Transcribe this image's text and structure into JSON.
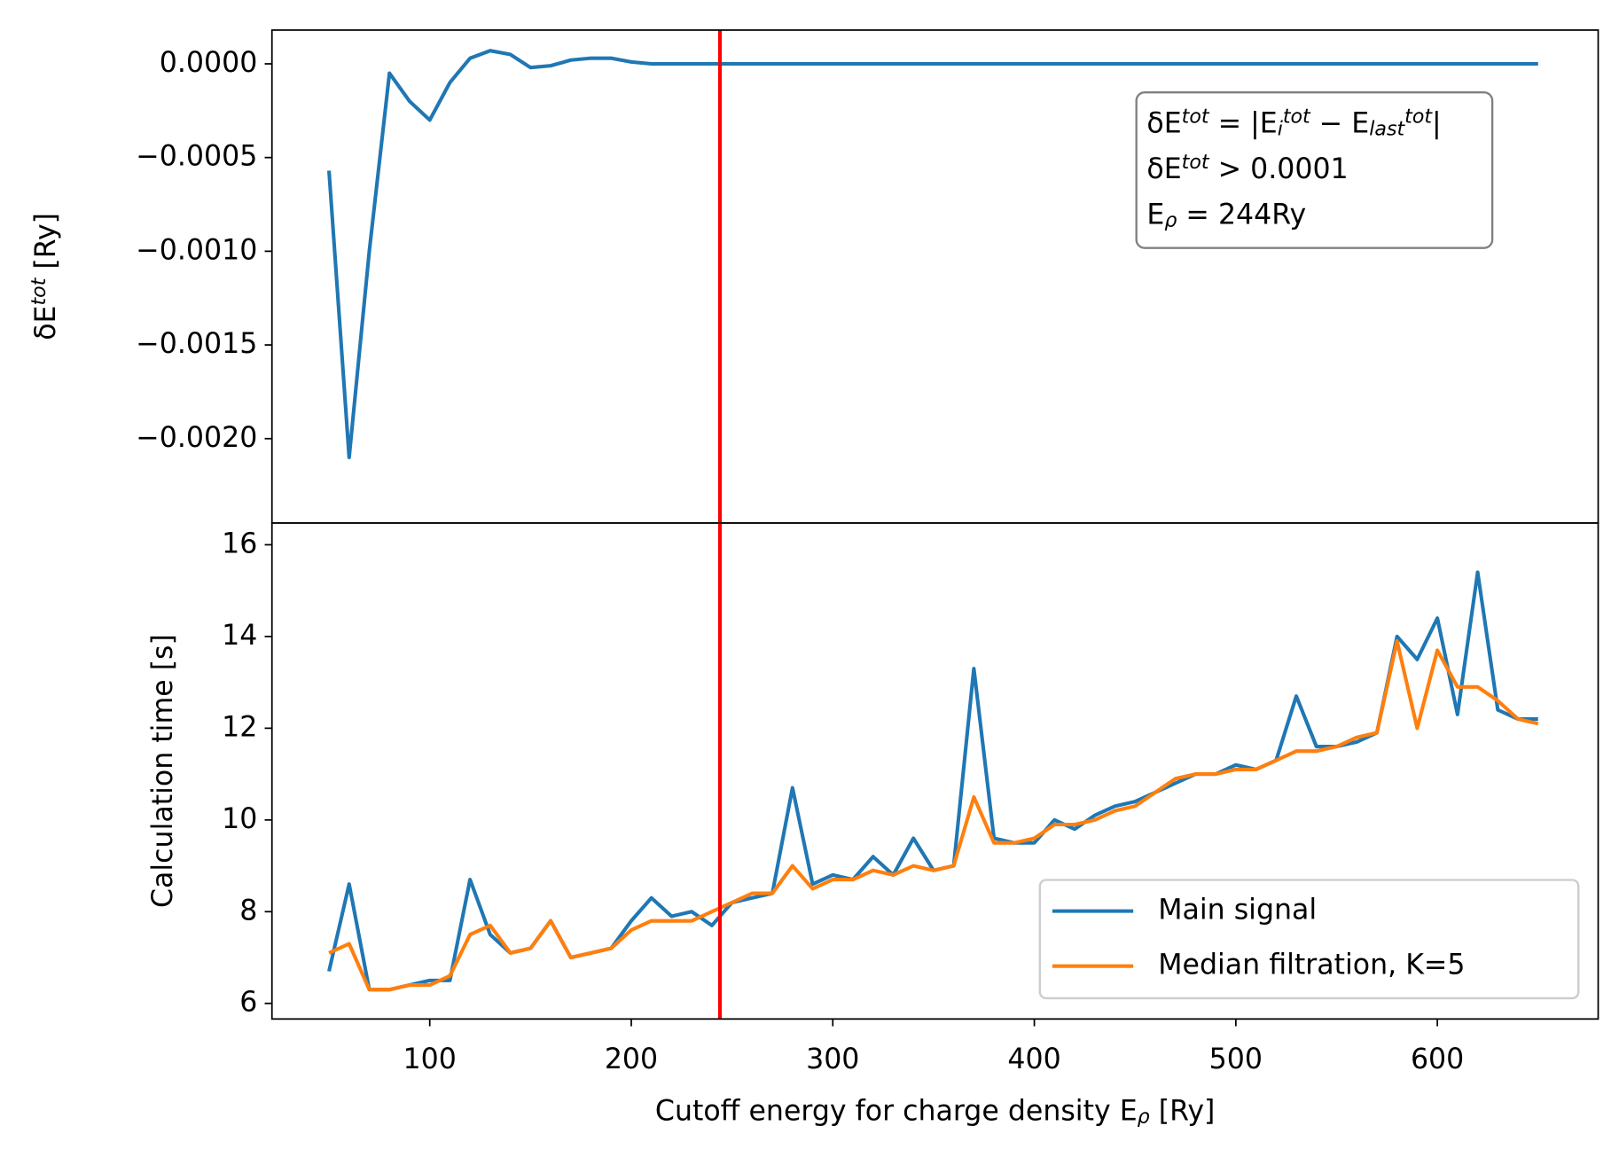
{
  "chart_data": [
    {
      "type": "line",
      "y_label": "δE^{tot} [Ry]",
      "x": [
        50,
        60,
        70,
        80,
        90,
        100,
        110,
        120,
        130,
        140,
        150,
        160,
        170,
        180,
        190,
        200,
        210,
        220,
        230,
        240,
        250,
        260,
        270,
        280,
        290,
        300,
        310,
        320,
        330,
        340,
        350,
        360,
        370,
        380,
        390,
        400,
        410,
        420,
        430,
        440,
        450,
        460,
        470,
        480,
        490,
        500,
        510,
        520,
        530,
        540,
        550,
        560,
        570,
        580,
        590,
        600,
        610,
        620,
        630,
        640,
        650
      ],
      "series": [
        {
          "name": "δE^{tot}",
          "color": "#1f77b4",
          "values": [
            -0.00057,
            -0.0021,
            -0.001,
            -5e-05,
            -0.0002,
            -0.0003,
            -0.0001,
            3e-05,
            7e-05,
            5e-05,
            -2e-05,
            -1e-05,
            2e-05,
            3e-05,
            3e-05,
            1e-05,
            0,
            0,
            0,
            0,
            0,
            0,
            0,
            0,
            0,
            0,
            0,
            0,
            0,
            0,
            0,
            0,
            0,
            0,
            0,
            0,
            0,
            0,
            0,
            0,
            0,
            0,
            0,
            0,
            0,
            0,
            0,
            0,
            0,
            0,
            0,
            0,
            0,
            0,
            0,
            0,
            0,
            0,
            0,
            0,
            0
          ]
        }
      ],
      "xlim": [
        21.7,
        679.8
      ],
      "ylim": [
        -0.00245,
        0.00018
      ],
      "yticks": [
        {
          "value": 0,
          "label": "0.0000"
        },
        {
          "value": -0.0005,
          "label": "−0.0005"
        },
        {
          "value": -0.001,
          "label": "−0.0010"
        },
        {
          "value": -0.0015,
          "label": "−0.0015"
        },
        {
          "value": -0.002,
          "label": "−0.0020"
        }
      ],
      "vline": {
        "value": 244,
        "color": "#ff0000"
      },
      "annotation": [
        "δE^{tot} = |E_{i}^{tot} − E_{last}^{tot}|",
        "δE^{tot} > 0.0001",
        "E_{ρ} = 244Ry"
      ]
    },
    {
      "type": "line",
      "x_label": "Cutoff energy for charge density E_{ρ} [Ry]",
      "y_label": "Calculation time [s]",
      "x": [
        50,
        60,
        70,
        80,
        90,
        100,
        110,
        120,
        130,
        140,
        150,
        160,
        170,
        180,
        190,
        200,
        210,
        220,
        230,
        240,
        250,
        260,
        270,
        280,
        290,
        300,
        310,
        320,
        330,
        340,
        350,
        360,
        370,
        380,
        390,
        400,
        410,
        420,
        430,
        440,
        450,
        460,
        470,
        480,
        490,
        500,
        510,
        520,
        530,
        540,
        550,
        560,
        570,
        580,
        590,
        600,
        610,
        620,
        630,
        640,
        650
      ],
      "series": [
        {
          "name": "Main signal",
          "color": "#1f77b4",
          "values": [
            6.7,
            8.6,
            6.3,
            6.3,
            6.4,
            6.5,
            6.5,
            8.7,
            7.5,
            7.1,
            7.2,
            7.8,
            7.0,
            7.1,
            7.2,
            7.8,
            8.3,
            7.9,
            8.0,
            7.7,
            8.2,
            8.3,
            8.4,
            10.7,
            8.6,
            8.8,
            8.7,
            9.2,
            8.8,
            9.6,
            8.9,
            9.0,
            13.3,
            9.6,
            9.5,
            9.5,
            10.0,
            9.8,
            10.1,
            10.3,
            10.4,
            10.6,
            10.8,
            11.0,
            11.0,
            11.2,
            11.1,
            11.3,
            12.7,
            11.6,
            11.6,
            11.7,
            11.9,
            14.0,
            13.5,
            14.4,
            12.3,
            15.4,
            12.4,
            12.2,
            12.2
          ]
        },
        {
          "name": "Median filtration, K=5",
          "color": "#ff7f0e",
          "values": [
            7.1,
            7.3,
            6.3,
            6.3,
            6.4,
            6.4,
            6.6,
            7.5,
            7.7,
            7.1,
            7.2,
            7.8,
            7.0,
            7.1,
            7.2,
            7.6,
            7.8,
            7.8,
            7.8,
            8.0,
            8.2,
            8.4,
            8.4,
            9.0,
            8.5,
            8.7,
            8.7,
            8.9,
            8.8,
            9.0,
            8.9,
            9.0,
            10.5,
            9.5,
            9.5,
            9.6,
            9.9,
            9.9,
            10.0,
            10.2,
            10.3,
            10.6,
            10.9,
            11.0,
            11.0,
            11.1,
            11.1,
            11.3,
            11.5,
            11.5,
            11.6,
            11.8,
            11.9,
            13.9,
            12.0,
            13.7,
            12.9,
            12.9,
            12.6,
            12.2,
            12.1
          ]
        }
      ],
      "xlim": [
        21.7,
        679.8
      ],
      "xticks": [
        100,
        200,
        300,
        400,
        500,
        600
      ],
      "ylim": [
        5.66,
        16.475
      ],
      "yticks": [
        6,
        8,
        10,
        12,
        14,
        16
      ],
      "vline": {
        "value": 244,
        "color": "#ff0000"
      },
      "legend": "lower right"
    }
  ]
}
